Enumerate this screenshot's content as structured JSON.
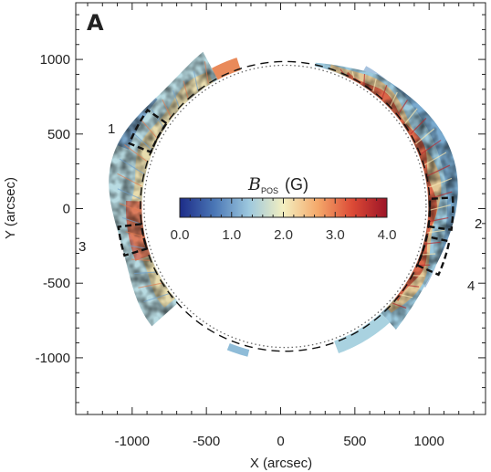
{
  "panel_label": "A",
  "axes": {
    "xlabel": "X (arcsec)",
    "ylabel": "Y (arcsec)",
    "xlim": [
      -1380,
      1380
    ],
    "ylim": [
      -1380,
      1380
    ],
    "x_ticks": [
      -1000,
      -500,
      0,
      500,
      1000
    ],
    "y_ticks": [
      1000,
      500,
      0,
      -500,
      -1000
    ],
    "x_tick_labels": [
      "-1000",
      "-500",
      "0",
      "500",
      "1000"
    ],
    "y_tick_labels": [
      "1000",
      "500",
      "0",
      "-500",
      "-1000"
    ]
  },
  "colorbar": {
    "symbol": "B",
    "subscript": "POS",
    "unit": "(G)",
    "range": [
      0.0,
      4.0
    ],
    "tick_values": [
      0,
      1,
      2,
      3,
      4
    ],
    "tick_labels": [
      "0.0",
      "1.0",
      "2.0",
      "3.0",
      "4.0"
    ],
    "colors": [
      "#1d2c88",
      "#4a76b5",
      "#9dc8de",
      "#f3efc0",
      "#f4a86a",
      "#dc4a36",
      "#9c1427"
    ]
  },
  "map": {
    "limb_radius_arcsec": 975,
    "center_arcsec": [
      30,
      15
    ],
    "inner_circle_radius_arcsec": 950,
    "field_of_view": "corona above east and west limbs"
  },
  "regions": [
    {
      "id": "1",
      "label": "1",
      "limb": "east",
      "angle_deg": [
        145,
        158
      ]
    },
    {
      "id": "2",
      "label": "2",
      "limb": "west",
      "angle_deg": [
        -8,
        3
      ]
    },
    {
      "id": "3",
      "label": "3",
      "limb": "east",
      "angle_deg": [
        187,
        197
      ]
    },
    {
      "id": "4",
      "label": "4",
      "limb": "west",
      "angle_deg": [
        -24,
        -12
      ]
    }
  ]
}
